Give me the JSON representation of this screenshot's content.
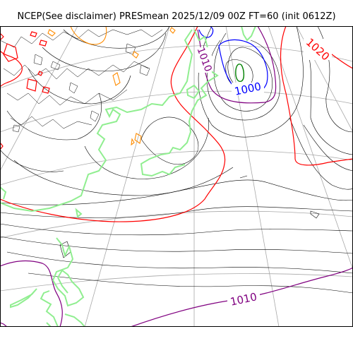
{
  "title": "NCEP(See disclaimer) PRESmean 2025/12/09 00Z FT=60 (init 0612Z)",
  "contour_labels": {
    "low_center": "1000",
    "north_isobar": "1010",
    "northeast_isobar": "1020",
    "south_isobar": "1010"
  },
  "colors": {
    "isobar_1000": "#0000ff",
    "isobar_1010": "#800080",
    "isobar_1020": "#ff0000",
    "isobar_990": "#008000",
    "isobar_minor": "#000000",
    "isobar_1030": "#ff8c00",
    "coastline": "#90ee90",
    "graticule": "#a9a9a9",
    "background": "#ffffff"
  },
  "icons": {
    "coastline": "coastline-line",
    "graticule": "latitude-longitude-grid"
  }
}
